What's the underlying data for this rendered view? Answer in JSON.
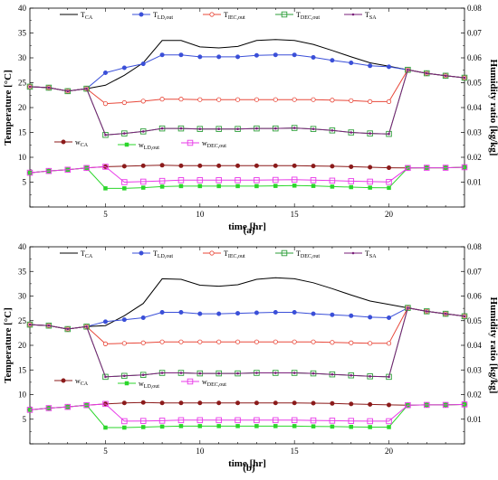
{
  "chart_data": [
    {
      "type": "line",
      "panel_label": "(a)",
      "xlabel": "time [hr]",
      "ylabel": "Temperature [°C]",
      "y2label": "Humidity ratio [kg/kg]",
      "xlim": [
        1,
        24
      ],
      "ylim": [
        0,
        40
      ],
      "y2lim": [
        0,
        0.08
      ],
      "xticks": [
        "5",
        "10",
        "15",
        "20"
      ],
      "yticks": [
        "0",
        "5",
        "10",
        "15",
        "20",
        "25",
        "30",
        "35",
        "40"
      ],
      "y2ticks": [
        "0",
        "0.01",
        "0.02",
        "0.03",
        "0.04",
        "0.05",
        "0.06",
        "0.07",
        "0.08"
      ],
      "x": [
        1,
        2,
        3,
        4,
        5,
        6,
        7,
        8,
        9,
        10,
        11,
        12,
        13,
        14,
        15,
        16,
        17,
        18,
        19,
        20,
        21,
        22,
        23,
        24
      ],
      "temperature_series": [
        {
          "key": "T_CA",
          "base": "T",
          "sub": "CA",
          "color": "#000000",
          "marker": "none",
          "values": [
            24.2,
            24.0,
            23.3,
            23.8,
            24.5,
            26.5,
            29.0,
            33.5,
            33.5,
            32.2,
            32.0,
            32.3,
            33.5,
            33.7,
            33.5,
            32.7,
            31.5,
            30.2,
            29.0,
            28.3,
            27.6,
            26.9,
            26.4,
            26.0
          ]
        },
        {
          "key": "T_LD,out",
          "base": "T",
          "sub": "LD,out",
          "color": "#3a4fd8",
          "marker": "filled-circle",
          "values": [
            24.2,
            24.0,
            23.3,
            23.8,
            27.0,
            28.0,
            28.8,
            30.6,
            30.6,
            30.2,
            30.2,
            30.2,
            30.5,
            30.6,
            30.6,
            30.1,
            29.5,
            29.0,
            28.4,
            28.2,
            27.6,
            26.9,
            26.4,
            26.0
          ]
        },
        {
          "key": "T_IEC,out",
          "base": "T",
          "sub": "IEC,out",
          "color": "#e8483a",
          "marker": "open-circle",
          "values": [
            24.2,
            24.0,
            23.3,
            23.8,
            20.8,
            21.0,
            21.3,
            21.7,
            21.7,
            21.6,
            21.6,
            21.6,
            21.6,
            21.6,
            21.6,
            21.6,
            21.5,
            21.4,
            21.2,
            21.2,
            27.6,
            26.9,
            26.4,
            26.0
          ]
        },
        {
          "key": "T_DEC,out",
          "base": "T",
          "sub": "DEC,out",
          "color": "#2e9e3a",
          "marker": "open-square",
          "values": [
            24.2,
            24.0,
            23.3,
            23.8,
            14.5,
            14.8,
            15.2,
            15.8,
            15.8,
            15.7,
            15.7,
            15.7,
            15.8,
            15.8,
            15.9,
            15.7,
            15.4,
            15.0,
            14.8,
            14.7,
            27.6,
            26.9,
            26.4,
            26.0
          ]
        },
        {
          "key": "T_SA",
          "base": "T",
          "sub": "SA",
          "color": "#7a1f7a",
          "marker": "dot",
          "values": [
            24.2,
            24.0,
            23.3,
            23.8,
            14.5,
            14.8,
            15.2,
            15.8,
            15.8,
            15.7,
            15.7,
            15.7,
            15.8,
            15.8,
            15.9,
            15.7,
            15.4,
            15.0,
            14.8,
            14.7,
            27.6,
            26.9,
            26.4,
            26.0
          ]
        }
      ],
      "humidity_series": [
        {
          "key": "w_CA",
          "base": "w",
          "sub": "CA",
          "color": "#8b1a1a",
          "marker": "filled-circle",
          "values": [
            0.0138,
            0.0145,
            0.015,
            0.0157,
            0.0162,
            0.0164,
            0.0166,
            0.0168,
            0.0166,
            0.0166,
            0.0166,
            0.0166,
            0.0166,
            0.0166,
            0.0166,
            0.0165,
            0.0164,
            0.0162,
            0.016,
            0.0158,
            0.0157,
            0.0158,
            0.0158,
            0.016
          ]
        },
        {
          "key": "w_LD,out",
          "base": "w",
          "sub": "LD,out",
          "color": "#2bd62b",
          "marker": "filled-square",
          "values": [
            0.0138,
            0.0145,
            0.015,
            0.0157,
            0.0075,
            0.0075,
            0.0078,
            0.0082,
            0.0084,
            0.0084,
            0.0084,
            0.0084,
            0.0084,
            0.0085,
            0.0086,
            0.0085,
            0.0082,
            0.008,
            0.0078,
            0.0077,
            0.0157,
            0.0158,
            0.0158,
            0.016
          ]
        },
        {
          "key": "w_DEC,out",
          "base": "w",
          "sub": "DEC,out",
          "color": "#e83ae8",
          "marker": "open-square",
          "values": [
            0.0138,
            0.0145,
            0.015,
            0.0157,
            0.0162,
            0.01,
            0.0102,
            0.0105,
            0.0108,
            0.0108,
            0.0108,
            0.0108,
            0.0108,
            0.0109,
            0.011,
            0.0108,
            0.0106,
            0.0104,
            0.0102,
            0.0101,
            0.0157,
            0.0158,
            0.0158,
            0.016
          ]
        }
      ]
    },
    {
      "type": "line",
      "panel_label": "(b)",
      "xlabel": "time [hr]",
      "ylabel": "Temperature [°C]",
      "y2label": "Humidity ratio [kg/kg]",
      "xlim": [
        1,
        24
      ],
      "ylim": [
        0,
        40
      ],
      "y2lim": [
        0,
        0.08
      ],
      "xticks": [
        "5",
        "10",
        "15",
        "20"
      ],
      "yticks": [
        "0",
        "5",
        "10",
        "15",
        "20",
        "25",
        "30",
        "35",
        "40"
      ],
      "y2ticks": [
        "0",
        "0.01",
        "0.02",
        "0.03",
        "0.04",
        "0.05",
        "0.06",
        "0.07",
        "0.08"
      ],
      "x": [
        1,
        2,
        3,
        4,
        5,
        6,
        7,
        8,
        9,
        10,
        11,
        12,
        13,
        14,
        15,
        16,
        17,
        18,
        19,
        20,
        21,
        22,
        23,
        24
      ],
      "temperature_series": [
        {
          "key": "T_CA",
          "base": "T",
          "sub": "CA",
          "color": "#000000",
          "marker": "none",
          "values": [
            24.2,
            24.0,
            23.3,
            23.8,
            24.0,
            26.0,
            28.5,
            33.5,
            33.4,
            32.2,
            32.0,
            32.3,
            33.4,
            33.7,
            33.5,
            32.7,
            31.5,
            30.2,
            29.0,
            28.3,
            27.6,
            26.9,
            26.4,
            25.9
          ]
        },
        {
          "key": "T_LD,out",
          "base": "T",
          "sub": "LD,out",
          "color": "#3a4fd8",
          "marker": "filled-circle",
          "values": [
            24.2,
            24.0,
            23.3,
            23.8,
            24.8,
            25.2,
            25.6,
            26.7,
            26.7,
            26.4,
            26.4,
            26.5,
            26.6,
            26.7,
            26.7,
            26.4,
            26.2,
            26.0,
            25.7,
            25.6,
            27.6,
            26.9,
            26.4,
            25.9
          ]
        },
        {
          "key": "T_IEC,out",
          "base": "T",
          "sub": "IEC,out",
          "color": "#e8483a",
          "marker": "open-circle",
          "values": [
            24.2,
            24.0,
            23.3,
            23.8,
            20.3,
            20.4,
            20.5,
            20.7,
            20.7,
            20.7,
            20.7,
            20.7,
            20.7,
            20.7,
            20.7,
            20.7,
            20.6,
            20.5,
            20.4,
            20.4,
            27.6,
            26.9,
            26.4,
            25.9
          ]
        },
        {
          "key": "T_DEC,out",
          "base": "T",
          "sub": "DEC,out",
          "color": "#2e9e3a",
          "marker": "open-square",
          "values": [
            24.2,
            24.0,
            23.3,
            23.8,
            13.6,
            13.8,
            14.0,
            14.4,
            14.4,
            14.3,
            14.3,
            14.3,
            14.4,
            14.4,
            14.4,
            14.3,
            14.1,
            13.9,
            13.7,
            13.6,
            27.6,
            26.9,
            26.4,
            25.9
          ]
        },
        {
          "key": "T_SA",
          "base": "T",
          "sub": "SA",
          "color": "#7a1f7a",
          "marker": "dot",
          "values": [
            24.2,
            24.0,
            23.3,
            23.8,
            13.6,
            13.8,
            14.0,
            14.4,
            14.4,
            14.3,
            14.3,
            14.3,
            14.4,
            14.4,
            14.4,
            14.3,
            14.1,
            13.9,
            13.7,
            13.6,
            27.6,
            26.9,
            26.4,
            25.9
          ]
        }
      ],
      "humidity_series": [
        {
          "key": "w_CA",
          "base": "w",
          "sub": "CA",
          "color": "#8b1a1a",
          "marker": "filled-circle",
          "values": [
            0.0138,
            0.0145,
            0.015,
            0.0157,
            0.0162,
            0.0166,
            0.0168,
            0.0166,
            0.0166,
            0.0166,
            0.0166,
            0.0166,
            0.0166,
            0.0166,
            0.0166,
            0.0165,
            0.0164,
            0.0162,
            0.016,
            0.0158,
            0.0157,
            0.0158,
            0.0158,
            0.016
          ]
        },
        {
          "key": "w_LD,out",
          "base": "w",
          "sub": "LD,out",
          "color": "#2bd62b",
          "marker": "filled-square",
          "values": [
            0.0138,
            0.0145,
            0.015,
            0.0157,
            0.0066,
            0.0066,
            0.0068,
            0.007,
            0.0072,
            0.0072,
            0.0072,
            0.0072,
            0.0072,
            0.0072,
            0.0072,
            0.0071,
            0.007,
            0.0069,
            0.0068,
            0.0068,
            0.0157,
            0.0158,
            0.0158,
            0.016
          ]
        },
        {
          "key": "w_DEC,out",
          "base": "w",
          "sub": "DEC,out",
          "color": "#e83ae8",
          "marker": "open-square",
          "values": [
            0.0138,
            0.0145,
            0.015,
            0.0157,
            0.0162,
            0.0092,
            0.0093,
            0.0094,
            0.0096,
            0.0096,
            0.0096,
            0.0096,
            0.0096,
            0.0096,
            0.0096,
            0.0095,
            0.0094,
            0.0093,
            0.0092,
            0.0092,
            0.0157,
            0.0158,
            0.0158,
            0.016
          ]
        }
      ]
    }
  ]
}
